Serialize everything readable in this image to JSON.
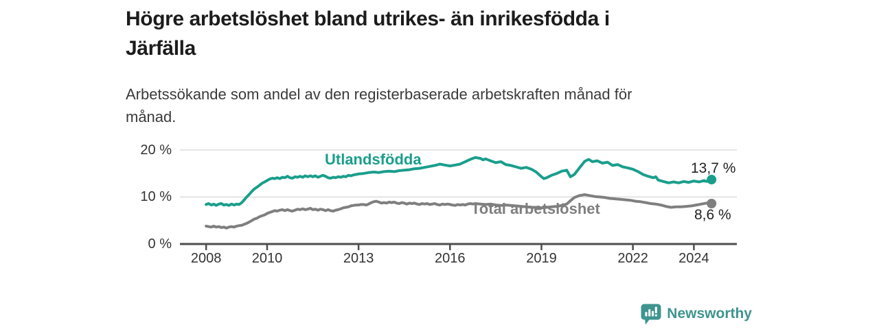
{
  "page": {
    "title_lines": [
      "Högre arbetslöshet bland utrikes- än inrikesfödda i",
      "Järfälla"
    ],
    "subtitle_lines": [
      "Arbetssökande som andel av den registerbaserade arbetskraften månad för",
      "månad."
    ]
  },
  "branding": {
    "logo_text": "Newsworthy",
    "logo_icon": "bar-chart-speech-bubble-icon",
    "logo_color": "#3e948f"
  },
  "colors": {
    "foreign_born_line": "#1a9e8c",
    "total_line": "#7f7f7f",
    "axis": "#4d4d4d",
    "gridline": "#dcdcdc",
    "tick_text": "#333333",
    "title_text": "#1c1c1c"
  },
  "chart_data": {
    "type": "line",
    "title": "Högre arbetslöshet bland utrikes- än inrikesfödda i Järfälla",
    "subtitle": "Arbetssökande som andel av den registerbaserade arbetskraften månad för månad.",
    "unit": "%",
    "grid": "horizontal",
    "legend_position": "inline-labels",
    "xlim": [
      2007.14,
      2025.41
    ],
    "ylim": [
      0,
      21.5
    ],
    "x_ticks": [
      2008,
      2010,
      2013,
      2016,
      2019,
      2022,
      2024
    ],
    "x_tick_labels": [
      "2008",
      "2010",
      "2013",
      "2016",
      "2019",
      "2022",
      "2024"
    ],
    "y_ticks": [
      0,
      10,
      20
    ],
    "y_tick_labels": [
      "0 %",
      "10 %",
      "20 %"
    ],
    "series": [
      {
        "name": "Utlandsfödda",
        "color": "#1a9e8c",
        "end_value": 13.7,
        "end_label": "13,7 %",
        "points": [
          [
            2008.0,
            8.4
          ],
          [
            2008.08,
            8.6
          ],
          [
            2008.17,
            8.3
          ],
          [
            2008.25,
            8.5
          ],
          [
            2008.33,
            8.2
          ],
          [
            2008.42,
            8.5
          ],
          [
            2008.5,
            8.6
          ],
          [
            2008.58,
            8.3
          ],
          [
            2008.67,
            8.4
          ],
          [
            2008.75,
            8.2
          ],
          [
            2008.83,
            8.5
          ],
          [
            2008.92,
            8.3
          ],
          [
            2009.0,
            8.5
          ],
          [
            2009.08,
            8.4
          ],
          [
            2009.17,
            8.8
          ],
          [
            2009.25,
            9.4
          ],
          [
            2009.33,
            10.0
          ],
          [
            2009.42,
            10.6
          ],
          [
            2009.5,
            11.2
          ],
          [
            2009.58,
            11.7
          ],
          [
            2009.67,
            12.1
          ],
          [
            2009.75,
            12.5
          ],
          [
            2009.83,
            12.9
          ],
          [
            2009.92,
            13.2
          ],
          [
            2010.0,
            13.5
          ],
          [
            2010.08,
            13.8
          ],
          [
            2010.17,
            14.0
          ],
          [
            2010.25,
            13.9
          ],
          [
            2010.33,
            14.1
          ],
          [
            2010.42,
            13.9
          ],
          [
            2010.5,
            14.2
          ],
          [
            2010.58,
            14.1
          ],
          [
            2010.67,
            14.4
          ],
          [
            2010.75,
            14.1
          ],
          [
            2010.83,
            14.0
          ],
          [
            2010.92,
            14.3
          ],
          [
            2011.0,
            14.2
          ],
          [
            2011.08,
            14.4
          ],
          [
            2011.17,
            14.2
          ],
          [
            2011.25,
            14.5
          ],
          [
            2011.33,
            14.3
          ],
          [
            2011.42,
            14.5
          ],
          [
            2011.5,
            14.3
          ],
          [
            2011.58,
            14.5
          ],
          [
            2011.67,
            14.2
          ],
          [
            2011.75,
            14.4
          ],
          [
            2011.83,
            14.6
          ],
          [
            2011.92,
            14.4
          ],
          [
            2012.0,
            14.1
          ],
          [
            2012.08,
            14.0
          ],
          [
            2012.17,
            14.2
          ],
          [
            2012.25,
            14.1
          ],
          [
            2012.33,
            14.3
          ],
          [
            2012.42,
            14.2
          ],
          [
            2012.5,
            14.4
          ],
          [
            2012.58,
            14.3
          ],
          [
            2012.67,
            14.6
          ],
          [
            2012.75,
            14.5
          ],
          [
            2012.83,
            14.7
          ],
          [
            2012.92,
            14.8
          ],
          [
            2013.0,
            14.9
          ],
          [
            2013.17,
            15.0
          ],
          [
            2013.33,
            15.2
          ],
          [
            2013.5,
            15.3
          ],
          [
            2013.67,
            15.2
          ],
          [
            2013.83,
            15.4
          ],
          [
            2014.0,
            15.5
          ],
          [
            2014.17,
            15.4
          ],
          [
            2014.33,
            15.6
          ],
          [
            2014.5,
            15.7
          ],
          [
            2014.67,
            15.8
          ],
          [
            2014.83,
            16.0
          ],
          [
            2015.0,
            16.1
          ],
          [
            2015.17,
            16.3
          ],
          [
            2015.33,
            16.5
          ],
          [
            2015.5,
            16.7
          ],
          [
            2015.67,
            17.0
          ],
          [
            2015.83,
            16.8
          ],
          [
            2016.0,
            16.6
          ],
          [
            2016.17,
            16.8
          ],
          [
            2016.33,
            17.0
          ],
          [
            2016.5,
            17.5
          ],
          [
            2016.67,
            18.0
          ],
          [
            2016.83,
            18.4
          ],
          [
            2017.0,
            18.2
          ],
          [
            2017.08,
            17.9
          ],
          [
            2017.17,
            18.1
          ],
          [
            2017.33,
            17.7
          ],
          [
            2017.5,
            17.3
          ],
          [
            2017.67,
            17.5
          ],
          [
            2017.83,
            16.9
          ],
          [
            2018.0,
            16.7
          ],
          [
            2018.17,
            16.4
          ],
          [
            2018.33,
            16.1
          ],
          [
            2018.5,
            16.3
          ],
          [
            2018.67,
            15.9
          ],
          [
            2018.83,
            15.3
          ],
          [
            2019.0,
            14.3
          ],
          [
            2019.08,
            13.9
          ],
          [
            2019.17,
            14.1
          ],
          [
            2019.33,
            14.6
          ],
          [
            2019.5,
            15.0
          ],
          [
            2019.67,
            15.5
          ],
          [
            2019.83,
            15.7
          ],
          [
            2019.95,
            14.3
          ],
          [
            2020.08,
            14.8
          ],
          [
            2020.25,
            16.2
          ],
          [
            2020.42,
            17.6
          ],
          [
            2020.55,
            18.0
          ],
          [
            2020.67,
            17.5
          ],
          [
            2020.83,
            17.7
          ],
          [
            2021.0,
            17.2
          ],
          [
            2021.17,
            17.4
          ],
          [
            2021.33,
            16.7
          ],
          [
            2021.5,
            16.9
          ],
          [
            2021.67,
            16.4
          ],
          [
            2021.83,
            16.2
          ],
          [
            2022.0,
            15.9
          ],
          [
            2022.17,
            15.4
          ],
          [
            2022.33,
            14.8
          ],
          [
            2022.5,
            14.4
          ],
          [
            2022.67,
            14.1
          ],
          [
            2022.75,
            14.3
          ],
          [
            2022.83,
            13.6
          ],
          [
            2023.0,
            13.3
          ],
          [
            2023.17,
            13.0
          ],
          [
            2023.33,
            13.2
          ],
          [
            2023.5,
            13.0
          ],
          [
            2023.67,
            13.3
          ],
          [
            2023.83,
            13.1
          ],
          [
            2024.0,
            13.4
          ],
          [
            2024.17,
            13.2
          ],
          [
            2024.33,
            13.5
          ],
          [
            2024.42,
            13.3
          ],
          [
            2024.58,
            13.7
          ]
        ]
      },
      {
        "name": "Total arbetslöshet",
        "color": "#7f7f7f",
        "end_value": 8.6,
        "end_label": "8,6 %",
        "points": [
          [
            2008.0,
            3.8
          ],
          [
            2008.08,
            3.7
          ],
          [
            2008.17,
            3.6
          ],
          [
            2008.25,
            3.8
          ],
          [
            2008.33,
            3.6
          ],
          [
            2008.42,
            3.7
          ],
          [
            2008.5,
            3.5
          ],
          [
            2008.58,
            3.6
          ],
          [
            2008.67,
            3.4
          ],
          [
            2008.75,
            3.6
          ],
          [
            2008.83,
            3.7
          ],
          [
            2008.92,
            3.6
          ],
          [
            2009.0,
            3.8
          ],
          [
            2009.08,
            3.9
          ],
          [
            2009.17,
            4.0
          ],
          [
            2009.25,
            4.2
          ],
          [
            2009.33,
            4.4
          ],
          [
            2009.42,
            4.7
          ],
          [
            2009.5,
            5.0
          ],
          [
            2009.58,
            5.3
          ],
          [
            2009.67,
            5.5
          ],
          [
            2009.75,
            5.8
          ],
          [
            2009.83,
            6.0
          ],
          [
            2009.92,
            6.2
          ],
          [
            2010.0,
            6.5
          ],
          [
            2010.08,
            6.7
          ],
          [
            2010.17,
            6.9
          ],
          [
            2010.25,
            7.1
          ],
          [
            2010.33,
            7.0
          ],
          [
            2010.42,
            7.2
          ],
          [
            2010.5,
            7.3
          ],
          [
            2010.58,
            7.1
          ],
          [
            2010.67,
            7.3
          ],
          [
            2010.75,
            7.1
          ],
          [
            2010.83,
            7.0
          ],
          [
            2010.92,
            7.2
          ],
          [
            2011.0,
            7.4
          ],
          [
            2011.08,
            7.3
          ],
          [
            2011.17,
            7.5
          ],
          [
            2011.25,
            7.3
          ],
          [
            2011.33,
            7.4
          ],
          [
            2011.42,
            7.6
          ],
          [
            2011.5,
            7.3
          ],
          [
            2011.58,
            7.4
          ],
          [
            2011.67,
            7.2
          ],
          [
            2011.75,
            7.4
          ],
          [
            2011.83,
            7.3
          ],
          [
            2011.92,
            7.1
          ],
          [
            2012.0,
            7.3
          ],
          [
            2012.08,
            7.1
          ],
          [
            2012.17,
            7.0
          ],
          [
            2012.25,
            7.2
          ],
          [
            2012.33,
            7.3
          ],
          [
            2012.42,
            7.5
          ],
          [
            2012.5,
            7.7
          ],
          [
            2012.58,
            7.8
          ],
          [
            2012.67,
            7.9
          ],
          [
            2012.75,
            8.1
          ],
          [
            2012.83,
            8.2
          ],
          [
            2012.92,
            8.3
          ],
          [
            2013.0,
            8.3
          ],
          [
            2013.08,
            8.4
          ],
          [
            2013.17,
            8.4
          ],
          [
            2013.25,
            8.3
          ],
          [
            2013.33,
            8.5
          ],
          [
            2013.42,
            8.8
          ],
          [
            2013.5,
            9.0
          ],
          [
            2013.58,
            9.1
          ],
          [
            2013.67,
            8.9
          ],
          [
            2013.75,
            8.7
          ],
          [
            2013.83,
            8.8
          ],
          [
            2013.92,
            8.7
          ],
          [
            2014.0,
            8.9
          ],
          [
            2014.08,
            8.8
          ],
          [
            2014.17,
            8.9
          ],
          [
            2014.25,
            8.7
          ],
          [
            2014.33,
            8.6
          ],
          [
            2014.42,
            8.8
          ],
          [
            2014.5,
            8.7
          ],
          [
            2014.58,
            8.5
          ],
          [
            2014.67,
            8.7
          ],
          [
            2014.75,
            8.6
          ],
          [
            2014.83,
            8.7
          ],
          [
            2014.92,
            8.5
          ],
          [
            2015.0,
            8.4
          ],
          [
            2015.08,
            8.6
          ],
          [
            2015.17,
            8.5
          ],
          [
            2015.25,
            8.6
          ],
          [
            2015.33,
            8.4
          ],
          [
            2015.42,
            8.5
          ],
          [
            2015.5,
            8.6
          ],
          [
            2015.58,
            8.4
          ],
          [
            2015.67,
            8.3
          ],
          [
            2015.75,
            8.5
          ],
          [
            2015.83,
            8.4
          ],
          [
            2015.92,
            8.5
          ],
          [
            2016.0,
            8.4
          ],
          [
            2016.08,
            8.3
          ],
          [
            2016.17,
            8.2
          ],
          [
            2016.25,
            8.4
          ],
          [
            2016.33,
            8.3
          ],
          [
            2016.42,
            8.4
          ],
          [
            2016.5,
            8.3
          ],
          [
            2016.58,
            8.5
          ],
          [
            2016.67,
            8.6
          ],
          [
            2016.75,
            8.5
          ],
          [
            2016.83,
            8.6
          ],
          [
            2017.0,
            8.5
          ],
          [
            2017.17,
            8.4
          ],
          [
            2017.33,
            8.5
          ],
          [
            2017.5,
            8.3
          ],
          [
            2017.67,
            8.2
          ],
          [
            2017.83,
            8.3
          ],
          [
            2018.0,
            8.2
          ],
          [
            2018.17,
            8.1
          ],
          [
            2018.33,
            8.0
          ],
          [
            2018.5,
            7.9
          ],
          [
            2018.67,
            7.8
          ],
          [
            2018.83,
            7.8
          ],
          [
            2019.0,
            7.7
          ],
          [
            2019.17,
            7.8
          ],
          [
            2019.33,
            7.9
          ],
          [
            2019.5,
            8.0
          ],
          [
            2019.67,
            8.2
          ],
          [
            2019.83,
            8.5
          ],
          [
            2019.95,
            9.2
          ],
          [
            2020.08,
            9.9
          ],
          [
            2020.25,
            10.3
          ],
          [
            2020.42,
            10.5
          ],
          [
            2020.58,
            10.3
          ],
          [
            2020.75,
            10.1
          ],
          [
            2020.92,
            10.0
          ],
          [
            2021.08,
            9.9
          ],
          [
            2021.25,
            9.7
          ],
          [
            2021.42,
            9.6
          ],
          [
            2021.58,
            9.5
          ],
          [
            2021.75,
            9.4
          ],
          [
            2021.92,
            9.3
          ],
          [
            2022.08,
            9.1
          ],
          [
            2022.25,
            9.0
          ],
          [
            2022.42,
            8.8
          ],
          [
            2022.58,
            8.6
          ],
          [
            2022.75,
            8.5
          ],
          [
            2022.92,
            8.3
          ],
          [
            2023.08,
            8.0
          ],
          [
            2023.25,
            7.8
          ],
          [
            2023.42,
            7.9
          ],
          [
            2023.58,
            7.9
          ],
          [
            2023.75,
            8.0
          ],
          [
            2023.92,
            8.1
          ],
          [
            2024.08,
            8.3
          ],
          [
            2024.25,
            8.5
          ],
          [
            2024.42,
            8.7
          ],
          [
            2024.58,
            8.6
          ]
        ]
      }
    ]
  }
}
